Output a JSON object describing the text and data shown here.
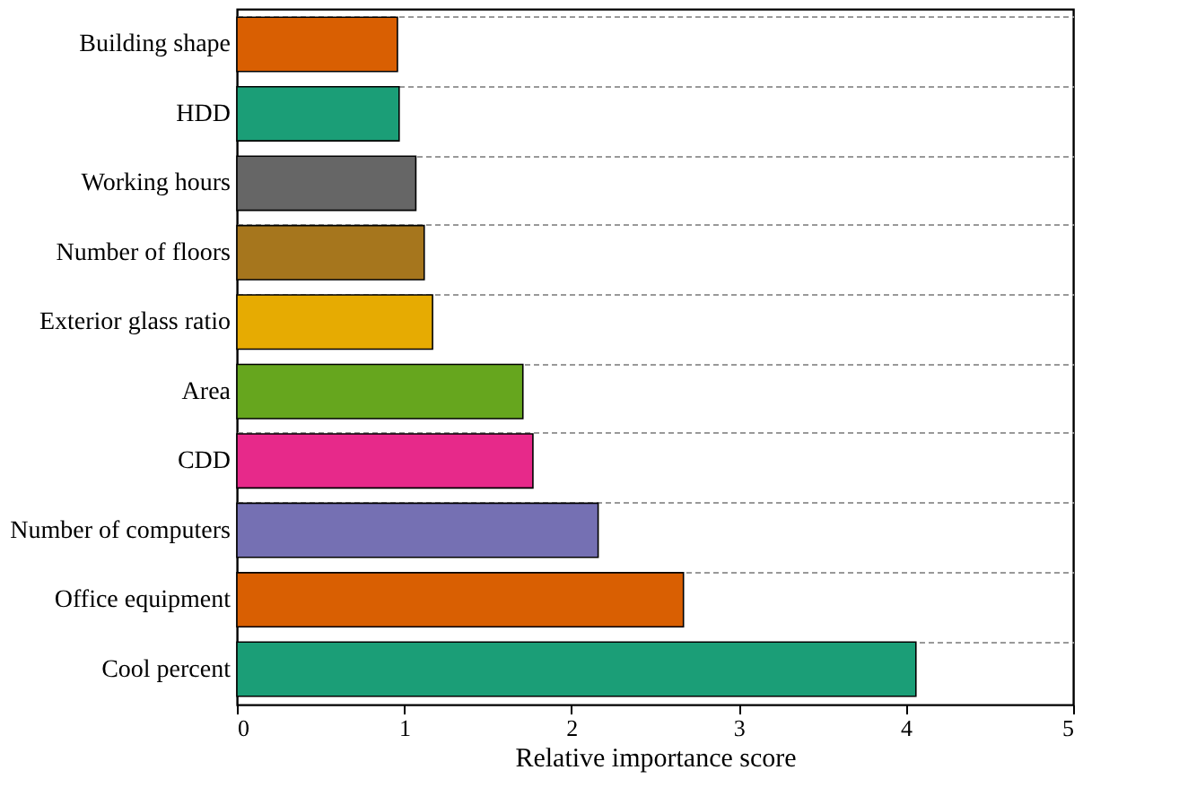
{
  "chart_data": {
    "type": "bar",
    "orientation": "horizontal",
    "xlabel": "Relative importance score",
    "categories": [
      "Building shape",
      "HDD",
      "Working hours",
      "Number of floors",
      "Exterior glass ratio",
      "Area",
      "CDD",
      "Number of computers",
      "Office equipment",
      "Cool percent"
    ],
    "values": [
      0.96,
      0.97,
      1.07,
      1.12,
      1.17,
      1.71,
      1.77,
      2.16,
      2.67,
      4.06
    ],
    "colors": [
      "#d95f02",
      "#1b9e77",
      "#666666",
      "#a6761d",
      "#e6ab02",
      "#66a61e",
      "#e7298a",
      "#7570b3",
      "#d95f02",
      "#1b9e77"
    ],
    "xlim": [
      0,
      5
    ],
    "xticks": [
      0,
      1,
      2,
      3,
      4,
      5
    ],
    "grid": "y"
  }
}
